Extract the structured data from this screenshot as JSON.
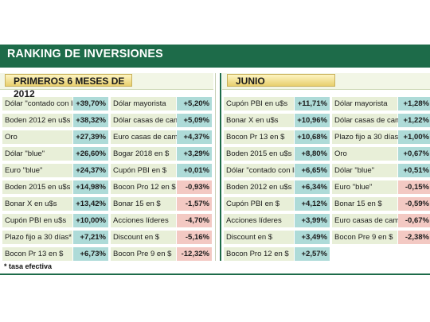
{
  "title": "RANKING DE INVERSIONES",
  "sections": {
    "left": "PRIMEROS 6 MESES DE 2012",
    "right": "JUNIO"
  },
  "columns": [
    [
      {
        "label": "Dólar \"contado con liq.\"",
        "value": "+39,70%"
      },
      {
        "label": "Boden 2012 en u$s",
        "value": "+38,32%"
      },
      {
        "label": "Oro",
        "value": "+27,39%"
      },
      {
        "label": "Dólar \"blue\"",
        "value": "+26,60%"
      },
      {
        "label": "Euro \"blue\"",
        "value": "+24,37%"
      },
      {
        "label": "Boden 2015 en u$s",
        "value": "+14,98%"
      },
      {
        "label": "Bonar X en u$s",
        "value": "+13,42%"
      },
      {
        "label": "Cupón PBI en u$s",
        "value": "+10,00%"
      },
      {
        "label": "Plazo fijo a 30 días*",
        "value": "+7,21%"
      },
      {
        "label": "Bocon Pr 13 en $",
        "value": "+6,73%"
      }
    ],
    [
      {
        "label": "Dólar mayorista",
        "value": "+5,20%"
      },
      {
        "label": "Dólar casas de cambio",
        "value": "+5,09%"
      },
      {
        "label": "Euro casas de cambio",
        "value": "+4,37%"
      },
      {
        "label": "Bogar 2018 en $",
        "value": "+3,29%"
      },
      {
        "label": "Cupón PBI en $",
        "value": "+0,01%"
      },
      {
        "label": "Bocon Pro 12 en $",
        "value": "-0,93%"
      },
      {
        "label": "Bonar 15 en $",
        "value": "-1,57%"
      },
      {
        "label": "Acciones líderes",
        "value": "-4,70%"
      },
      {
        "label": "Discount en $",
        "value": "-5,16%"
      },
      {
        "label": "Bocon Pre 9 en $",
        "value": "-12,32%"
      }
    ],
    [
      {
        "label": "Cupón PBI en u$s",
        "value": "+11,71%"
      },
      {
        "label": "Bonar X en u$s",
        "value": "+10,96%"
      },
      {
        "label": "Bocon Pr 13 en $",
        "value": "+10,68%"
      },
      {
        "label": "Boden 2015 en u$s",
        "value": "+8,80%"
      },
      {
        "label": "Dólar \"contado con liq.\"",
        "value": "+6,65%"
      },
      {
        "label": "Boden 2012 en u$s",
        "value": "+6,34%"
      },
      {
        "label": "Cupón PBI en $",
        "value": "+4,12%"
      },
      {
        "label": "Acciones líderes",
        "value": "+3,99%"
      },
      {
        "label": "Discount en $",
        "value": "+3,49%"
      },
      {
        "label": "Bocon Pro 12 en $",
        "value": "+2,57%"
      }
    ],
    [
      {
        "label": "Dólar mayorista",
        "value": "+1,28%"
      },
      {
        "label": "Dólar casas de cambio",
        "value": "+1,22%"
      },
      {
        "label": "Plazo fijo a 30 días",
        "value": "+1,00%"
      },
      {
        "label": "Oro",
        "value": "+0,67%"
      },
      {
        "label": "Dólar \"blue\"",
        "value": "+0,51%"
      },
      {
        "label": "Euro \"blue\"",
        "value": "-0,15%"
      },
      {
        "label": "Bonar 15 en $",
        "value": "-0,59%"
      },
      {
        "label": "Euro casas de cambio",
        "value": "-0,67%"
      },
      {
        "label": "Bocon Pre 9 en $",
        "value": "-2,38%"
      }
    ]
  ],
  "footnote": "* tasa efectiva",
  "colors": {
    "header_green": "#1d6b49",
    "positive": "#aedbd8",
    "negative": "#f3c9c3",
    "label_bg": "#e8efd8"
  }
}
